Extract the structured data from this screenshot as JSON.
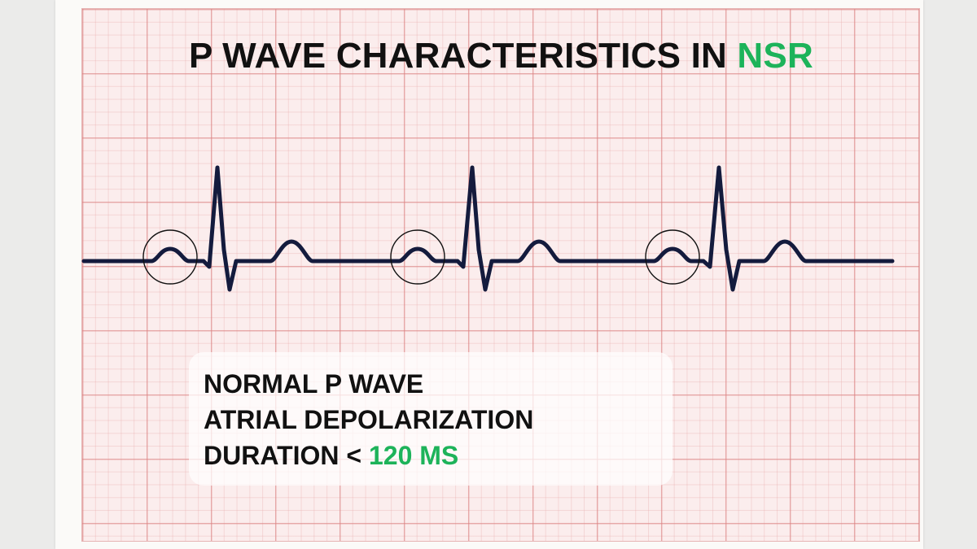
{
  "title": {
    "main": "P WAVE CHARACTERISTICS IN",
    "highlight": "NSR"
  },
  "info": {
    "line1": "NORMAL P WAVE",
    "line2": "ATRIAL DEPOLARIZATION",
    "line3_prefix": "DURATION <",
    "line3_value": "120 MS"
  },
  "ecg": {
    "beats": 3,
    "p_waves_circled": 3
  },
  "colors": {
    "accent": "#1db35a",
    "trace": "#141b3d",
    "grid_major": "#db8181",
    "grid_background": "#fbeded"
  }
}
